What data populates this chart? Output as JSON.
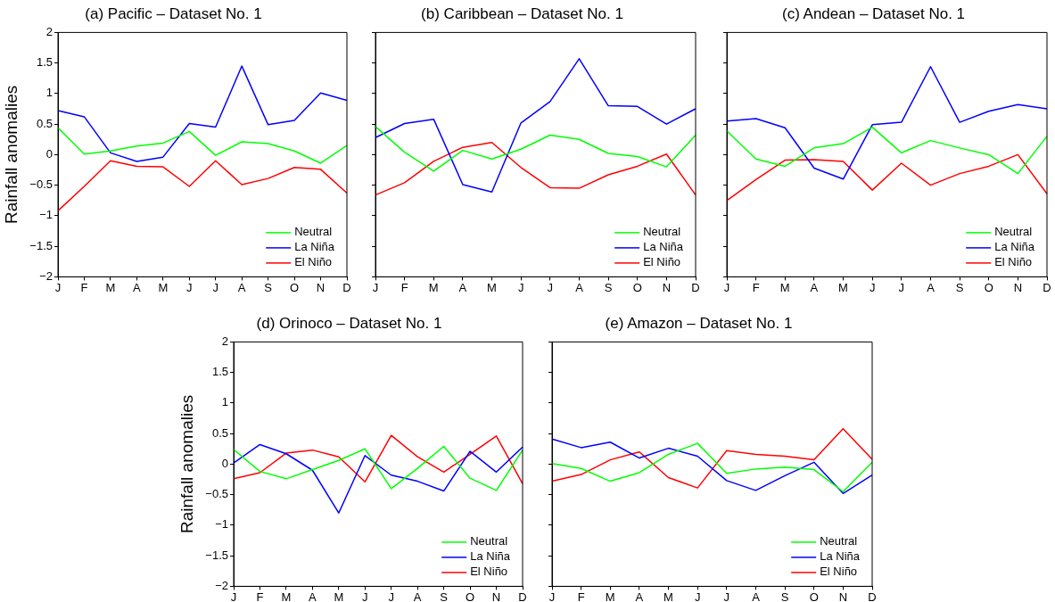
{
  "chart_data": [
    {
      "type": "line",
      "title": "(a) Pacific – Dataset No. 1",
      "ylabel": "Rainfall anomalies",
      "categories": [
        "J",
        "F",
        "M",
        "A",
        "M",
        "J",
        "J",
        "A",
        "S",
        "O",
        "N",
        "D"
      ],
      "ylim": [
        -2,
        2
      ],
      "yticks": [
        -2,
        -1.5,
        -1,
        -0.5,
        0,
        0.5,
        1,
        1.5,
        2
      ],
      "legend": "bottom right",
      "grid": false,
      "series": [
        {
          "name": "Neutral",
          "color": "#00ff00",
          "values": [
            0.44,
            0.01,
            0.06,
            0.14,
            0.19,
            0.38,
            -0.01,
            0.21,
            0.18,
            0.06,
            -0.14,
            0.15
          ]
        },
        {
          "name": "La Niña",
          "color": "#0000ff",
          "values": [
            0.72,
            0.62,
            0.03,
            -0.11,
            -0.04,
            0.51,
            0.45,
            1.45,
            0.49,
            0.56,
            1.01,
            0.89
          ]
        },
        {
          "name": "El Niño",
          "color": "#ff0000",
          "values": [
            -0.92,
            -0.52,
            -0.1,
            -0.19,
            -0.2,
            -0.52,
            -0.1,
            -0.49,
            -0.39,
            -0.21,
            -0.24,
            -0.63
          ]
        }
      ]
    },
    {
      "type": "line",
      "title": "(b) Caribbean – Dataset No. 1",
      "categories": [
        "J",
        "F",
        "M",
        "A",
        "M",
        "J",
        "J",
        "A",
        "S",
        "O",
        "N",
        "D"
      ],
      "ylim": [
        -2,
        2
      ],
      "yticks": [
        -2,
        -1.5,
        -1,
        -0.5,
        0,
        0.5,
        1,
        1.5,
        2
      ],
      "tick_labels": "x",
      "legend": "bottom right",
      "grid": false,
      "series": [
        {
          "name": "Neutral",
          "color": "#00ff00",
          "values": [
            0.46,
            0.04,
            -0.27,
            0.07,
            -0.07,
            0.09,
            0.32,
            0.25,
            0.02,
            -0.03,
            -0.2,
            0.32
          ]
        },
        {
          "name": "La Niña",
          "color": "#0000ff",
          "values": [
            0.28,
            0.51,
            0.58,
            -0.49,
            -0.61,
            0.52,
            0.87,
            1.57,
            0.8,
            0.79,
            0.5,
            0.75
          ]
        },
        {
          "name": "El Niño",
          "color": "#ff0000",
          "values": [
            -0.66,
            -0.46,
            -0.11,
            0.12,
            0.2,
            -0.21,
            -0.54,
            -0.55,
            -0.33,
            -0.19,
            0.01,
            -0.66
          ]
        }
      ]
    },
    {
      "type": "line",
      "title": "(c) Andean – Dataset No. 1",
      "categories": [
        "J",
        "F",
        "M",
        "A",
        "M",
        "J",
        "J",
        "A",
        "S",
        "O",
        "N",
        "D"
      ],
      "ylim": [
        -2,
        2
      ],
      "yticks": [
        -2,
        -1.5,
        -1,
        -0.5,
        0,
        0.5,
        1,
        1.5,
        2
      ],
      "tick_labels": "x",
      "legend": "bottom right",
      "grid": false,
      "series": [
        {
          "name": "Neutral",
          "color": "#00ff00",
          "values": [
            0.39,
            -0.07,
            -0.19,
            0.11,
            0.18,
            0.45,
            0.03,
            0.23,
            0.11,
            0,
            -0.31,
            0.3
          ]
        },
        {
          "name": "La Niña",
          "color": "#0000ff",
          "values": [
            0.55,
            0.59,
            0.44,
            -0.22,
            -0.4,
            0.49,
            0.53,
            1.44,
            0.53,
            0.71,
            0.82,
            0.75
          ]
        },
        {
          "name": "El Niño",
          "color": "#ff0000",
          "values": [
            -0.75,
            -0.41,
            -0.09,
            -0.08,
            -0.11,
            -0.58,
            -0.14,
            -0.5,
            -0.31,
            -0.19,
            0,
            -0.64
          ]
        }
      ]
    },
    {
      "type": "line",
      "title": "(d) Orinoco – Dataset No. 1",
      "ylabel": "Rainfall anomalies",
      "categories": [
        "J",
        "F",
        "M",
        "A",
        "M",
        "J",
        "J",
        "A",
        "S",
        "O",
        "N",
        "D"
      ],
      "ylim": [
        -2,
        2
      ],
      "yticks": [
        -2,
        -1.5,
        -1,
        -0.5,
        0,
        0.5,
        1,
        1.5,
        2
      ],
      "legend": "bottom right",
      "grid": false,
      "series": [
        {
          "name": "Neutral",
          "color": "#00ff00",
          "values": [
            0.24,
            -0.12,
            -0.24,
            -0.09,
            0.06,
            0.25,
            -0.4,
            -0.07,
            0.29,
            -0.23,
            -0.43,
            0.23
          ]
        },
        {
          "name": "La Niña",
          "color": "#0000ff",
          "values": [
            0.02,
            0.32,
            0.17,
            -0.1,
            -0.8,
            0.14,
            -0.18,
            -0.28,
            -0.44,
            0.21,
            -0.13,
            0.28
          ]
        },
        {
          "name": "El Niño",
          "color": "#ff0000",
          "values": [
            -0.24,
            -0.14,
            0.18,
            0.23,
            0.12,
            -0.29,
            0.47,
            0.12,
            -0.13,
            0.16,
            0.46,
            -0.32
          ]
        }
      ]
    },
    {
      "type": "line",
      "title": "(e) Amazon – Dataset No. 1",
      "categories": [
        "J",
        "F",
        "M",
        "A",
        "M",
        "J",
        "J",
        "A",
        "S",
        "O",
        "N",
        "D"
      ],
      "ylim": [
        -2,
        2
      ],
      "yticks": [
        -2,
        -1.5,
        -1,
        -0.5,
        0,
        0.5,
        1,
        1.5,
        2
      ],
      "tick_labels": "x",
      "legend": "bottom right",
      "grid": false,
      "series": [
        {
          "name": "Neutral",
          "color": "#00ff00",
          "values": [
            0.01,
            -0.07,
            -0.28,
            -0.14,
            0.16,
            0.34,
            -0.15,
            -0.08,
            -0.05,
            -0.09,
            -0.45,
            0.03
          ]
        },
        {
          "name": "La Niña",
          "color": "#0000ff",
          "values": [
            0.41,
            0.27,
            0.36,
            0.1,
            0.26,
            0.13,
            -0.27,
            -0.43,
            -0.19,
            0.03,
            -0.48,
            -0.18
          ]
        },
        {
          "name": "El Niño",
          "color": "#ff0000",
          "values": [
            -0.28,
            -0.17,
            0.07,
            0.2,
            -0.22,
            -0.39,
            0.22,
            0.16,
            0.13,
            0.07,
            0.58,
            0.08
          ]
        }
      ]
    }
  ]
}
